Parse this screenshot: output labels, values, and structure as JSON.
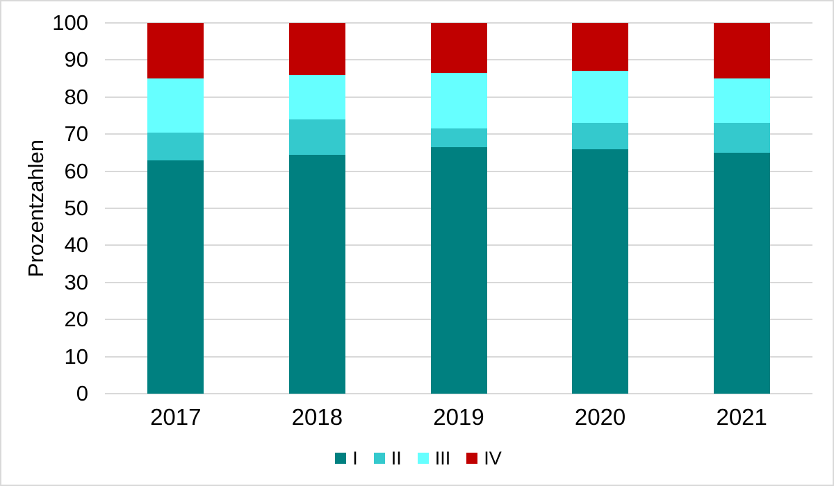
{
  "chart_data": {
    "type": "bar",
    "stacked": true,
    "title": "",
    "ylabel": "Prozentzahlen",
    "xlabel": "",
    "categories": [
      "2017",
      "2018",
      "2019",
      "2020",
      "2021"
    ],
    "series": [
      {
        "name": "I",
        "color": "#008080",
        "values": [
          63,
          64.5,
          66.5,
          66,
          65
        ]
      },
      {
        "name": "II",
        "color": "#34C9CD",
        "values": [
          7.5,
          9.5,
          5,
          7,
          8
        ]
      },
      {
        "name": "III",
        "color": "#66FFFF",
        "values": [
          14.5,
          12,
          15,
          14,
          12
        ]
      },
      {
        "name": "IV",
        "color": "#C00000",
        "values": [
          15,
          14,
          13.5,
          13,
          15
        ]
      }
    ],
    "ylim": [
      0,
      100
    ],
    "yticks": [
      0,
      10,
      20,
      30,
      40,
      50,
      60,
      70,
      80,
      90,
      100
    ],
    "grid": "horizontal",
    "legend_position": "bottom"
  },
  "style": {
    "grid_color": "#D9D9D9",
    "axis_line_color": "#D9D9D9",
    "frame_border_color": "#D9D9D9",
    "background_color": "#FFFFFF",
    "text_color": "#000000"
  }
}
